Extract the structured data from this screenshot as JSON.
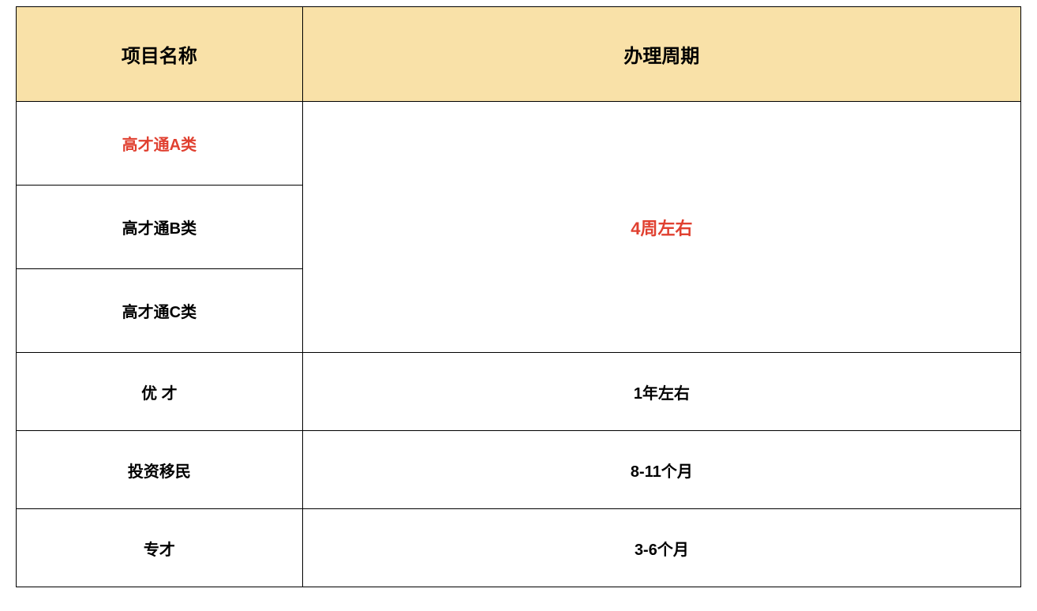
{
  "table": {
    "headers": {
      "name": "项目名称",
      "period": "办理周期"
    },
    "styling": {
      "header_bg": "#f9e1a8",
      "header_bg_style": "background-color: #f9e1a8;",
      "border_color": "#000000",
      "highlight_color": "#e04030",
      "text_color": "#000000",
      "font_size_header": 24,
      "font_size_body": 20,
      "col1_width_pct": 28.5,
      "col2_width_pct": 71.5
    },
    "rows": {
      "gaocai_a": {
        "name": "高才通A类",
        "highlight": true
      },
      "gaocai_b": {
        "name": "高才通B类",
        "highlight": false
      },
      "gaocai_c": {
        "name": "高才通C类",
        "highlight": false
      },
      "gaocai_period": {
        "value": "4周左右",
        "highlight": true,
        "rowspan": 3
      },
      "youcai": {
        "name": "优 才",
        "period": "1年左右"
      },
      "touzi": {
        "name": "投资移民",
        "period": "8-11个月"
      },
      "zhuancai": {
        "name": "专才",
        "period": "3-6个月"
      }
    }
  }
}
